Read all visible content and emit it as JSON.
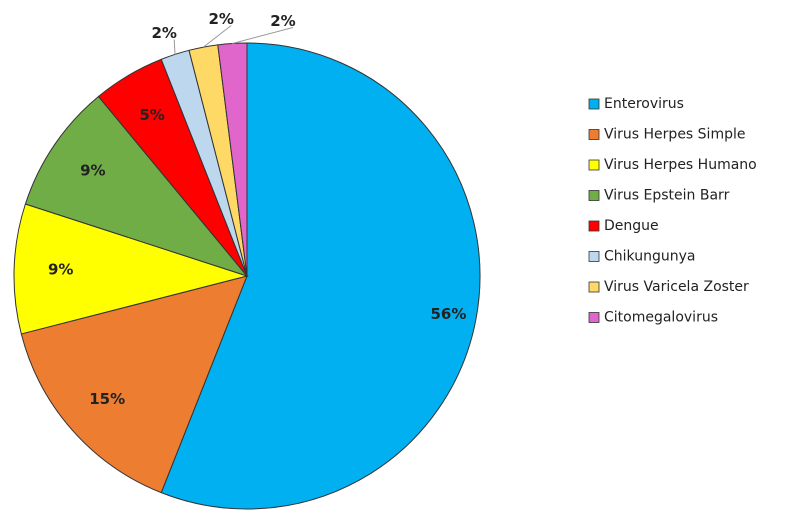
{
  "chart_data": {
    "type": "pie",
    "categories": [
      "Enterovirus",
      "Virus Herpes Simple",
      "Virus Herpes Humano",
      "Virus Epstein Barr",
      "Dengue",
      "Chikungunya",
      "Virus Varicela Zoster",
      "Citomegalovirus"
    ],
    "values": [
      56,
      15,
      9,
      9,
      5,
      2,
      2,
      2
    ],
    "value_labels": [
      "56%",
      "15%",
      "9%",
      "9%",
      "5%",
      "2%",
      "2%",
      "2%"
    ],
    "colors": [
      "#00B0F0",
      "#ED7D31",
      "#FFFF00",
      "#70AD47",
      "#FF0000",
      "#BDD7EE",
      "#FFD966",
      "#E066CC"
    ],
    "legend": "right"
  }
}
